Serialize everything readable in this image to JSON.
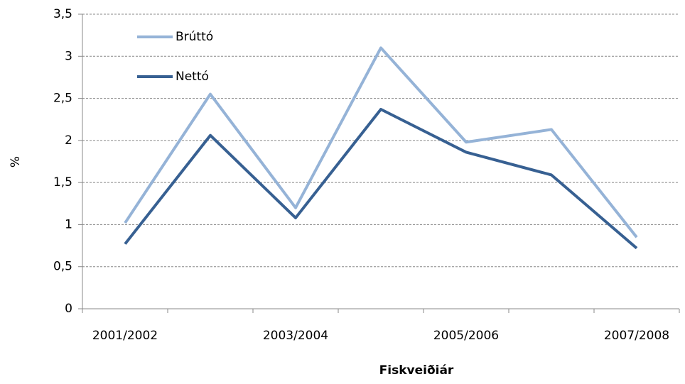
{
  "chart_data": {
    "type": "line",
    "x_label": "Fiskveiðiár",
    "y_label": "%",
    "categories": [
      "2001/2002",
      null,
      "2003/2004",
      null,
      "2005/2006",
      null,
      "2007/2008"
    ],
    "series": [
      {
        "name": "Brúttó",
        "color": "#95b3d7",
        "values": [
          1.02,
          2.55,
          1.2,
          3.1,
          1.98,
          2.13,
          0.85
        ]
      },
      {
        "name": "Nettó",
        "color": "#376092",
        "values": [
          0.77,
          2.06,
          1.08,
          2.37,
          1.86,
          1.59,
          0.72
        ]
      }
    ],
    "ylim": [
      0,
      3.5
    ],
    "yticks": [
      0,
      {
        "value": 0.5,
        "label": "0,5"
      },
      1,
      {
        "value": 1.5,
        "label": "1,5"
      },
      2,
      {
        "value": 2.5,
        "label": "2,5"
      },
      3,
      {
        "value": 3.5,
        "label": "3,5"
      }
    ],
    "grid": true,
    "legend": "top-left"
  }
}
